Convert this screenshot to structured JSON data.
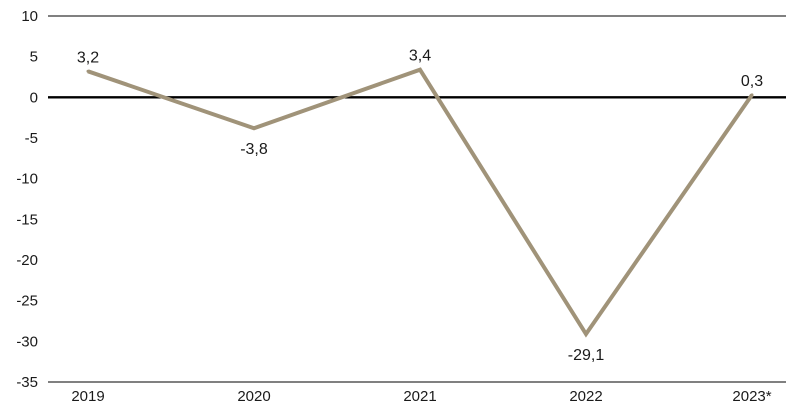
{
  "chart_data": {
    "type": "line",
    "title": "",
    "xlabel": "",
    "ylabel": "",
    "categories": [
      "2019",
      "2020",
      "2021",
      "2022",
      "2023*"
    ],
    "series": [
      {
        "values": [
          3.2,
          -3.8,
          3.4,
          -29.1,
          0.3
        ],
        "value_labels": [
          "3,2",
          "-3,8",
          "3,4",
          "-29,1",
          "0,3"
        ],
        "color": "#a09379"
      }
    ],
    "ylim": [
      -35,
      10
    ],
    "yticks": [
      10,
      5,
      0,
      -5,
      -10,
      -15,
      -20,
      -25,
      -30,
      -35
    ],
    "ytick_labels": [
      "10",
      "5",
      "0",
      "-5",
      "-10",
      "-15",
      "-20",
      "-25",
      "-30",
      "-35"
    ],
    "grid": false,
    "zero_line": true,
    "legend": "none",
    "colors": {
      "line": "#a09379",
      "axis": "#000000",
      "text": "#1a1a1a"
    }
  }
}
